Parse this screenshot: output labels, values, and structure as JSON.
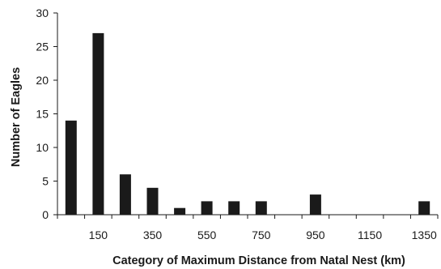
{
  "chart_data": {
    "type": "bar",
    "title": "",
    "xlabel": "Category of Maximum Distance from Natal Nest (km)",
    "ylabel": "Number of Eagles",
    "categories": [
      50,
      150,
      250,
      350,
      450,
      550,
      650,
      750,
      850,
      950,
      1050,
      1150,
      1250,
      1350
    ],
    "values": [
      14,
      27,
      6,
      4,
      1,
      2,
      2,
      2,
      0,
      3,
      0,
      0,
      0,
      2
    ],
    "x_tick_labels": [
      "150",
      "350",
      "550",
      "750",
      "950",
      "1150",
      "1350"
    ],
    "y_ticks": [
      0,
      5,
      10,
      15,
      20,
      25,
      30
    ],
    "ylim": [
      0,
      30
    ],
    "grid": false,
    "legend": "none",
    "bar_color": "#1a1a1a"
  }
}
